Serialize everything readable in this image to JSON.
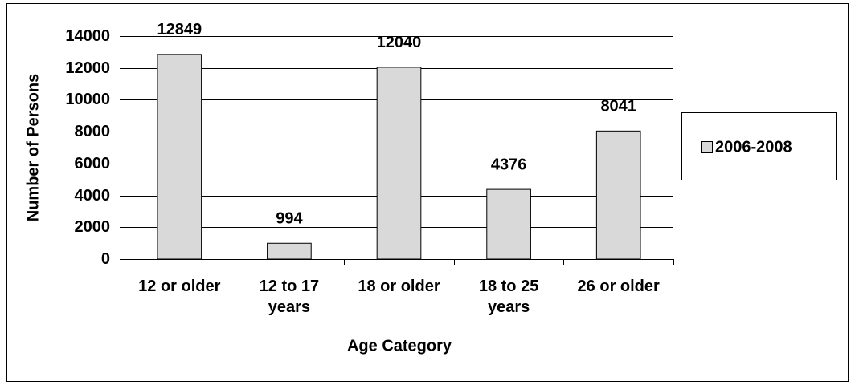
{
  "chart_data": {
    "type": "bar",
    "x_label": "Age Category",
    "y_label": "Number of Persons",
    "categories": [
      "12 or older",
      "12 to 17 years",
      "18 or older",
      "18 to 25 years",
      "26 or older"
    ],
    "series": [
      {
        "name": "2006-2008",
        "color": "#d9d9d9",
        "values": [
          12849,
          994,
          12040,
          4376,
          8041
        ]
      }
    ],
    "ylim": [
      0,
      14000
    ],
    "yticks": [
      0,
      2000,
      4000,
      6000,
      8000,
      10000,
      12000,
      14000
    ],
    "grid": true,
    "legend": "right"
  }
}
